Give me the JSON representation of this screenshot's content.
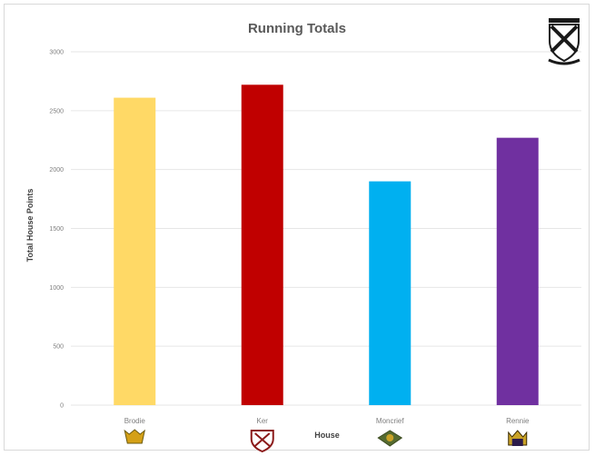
{
  "chart_data": {
    "type": "bar",
    "title": "Running Totals",
    "xlabel": "House",
    "ylabel": "Total House Points",
    "categories": [
      "Brodie",
      "Ker",
      "Moncrief",
      "Rennie"
    ],
    "values": [
      2610,
      2720,
      1900,
      2270
    ],
    "colors": [
      "#FFD966",
      "#C00000",
      "#00B0F0",
      "#7030A0"
    ],
    "ylim": [
      0,
      3000
    ],
    "yticks": [
      0,
      500,
      1000,
      1500,
      2000,
      2500,
      3000
    ],
    "grid": true,
    "legend": "none"
  },
  "icons": {
    "logo": "school-crest-icon",
    "house_crests": [
      "brodie-crest-icon",
      "ker-crest-icon",
      "moncrief-crest-icon",
      "rennie-crest-icon"
    ]
  }
}
